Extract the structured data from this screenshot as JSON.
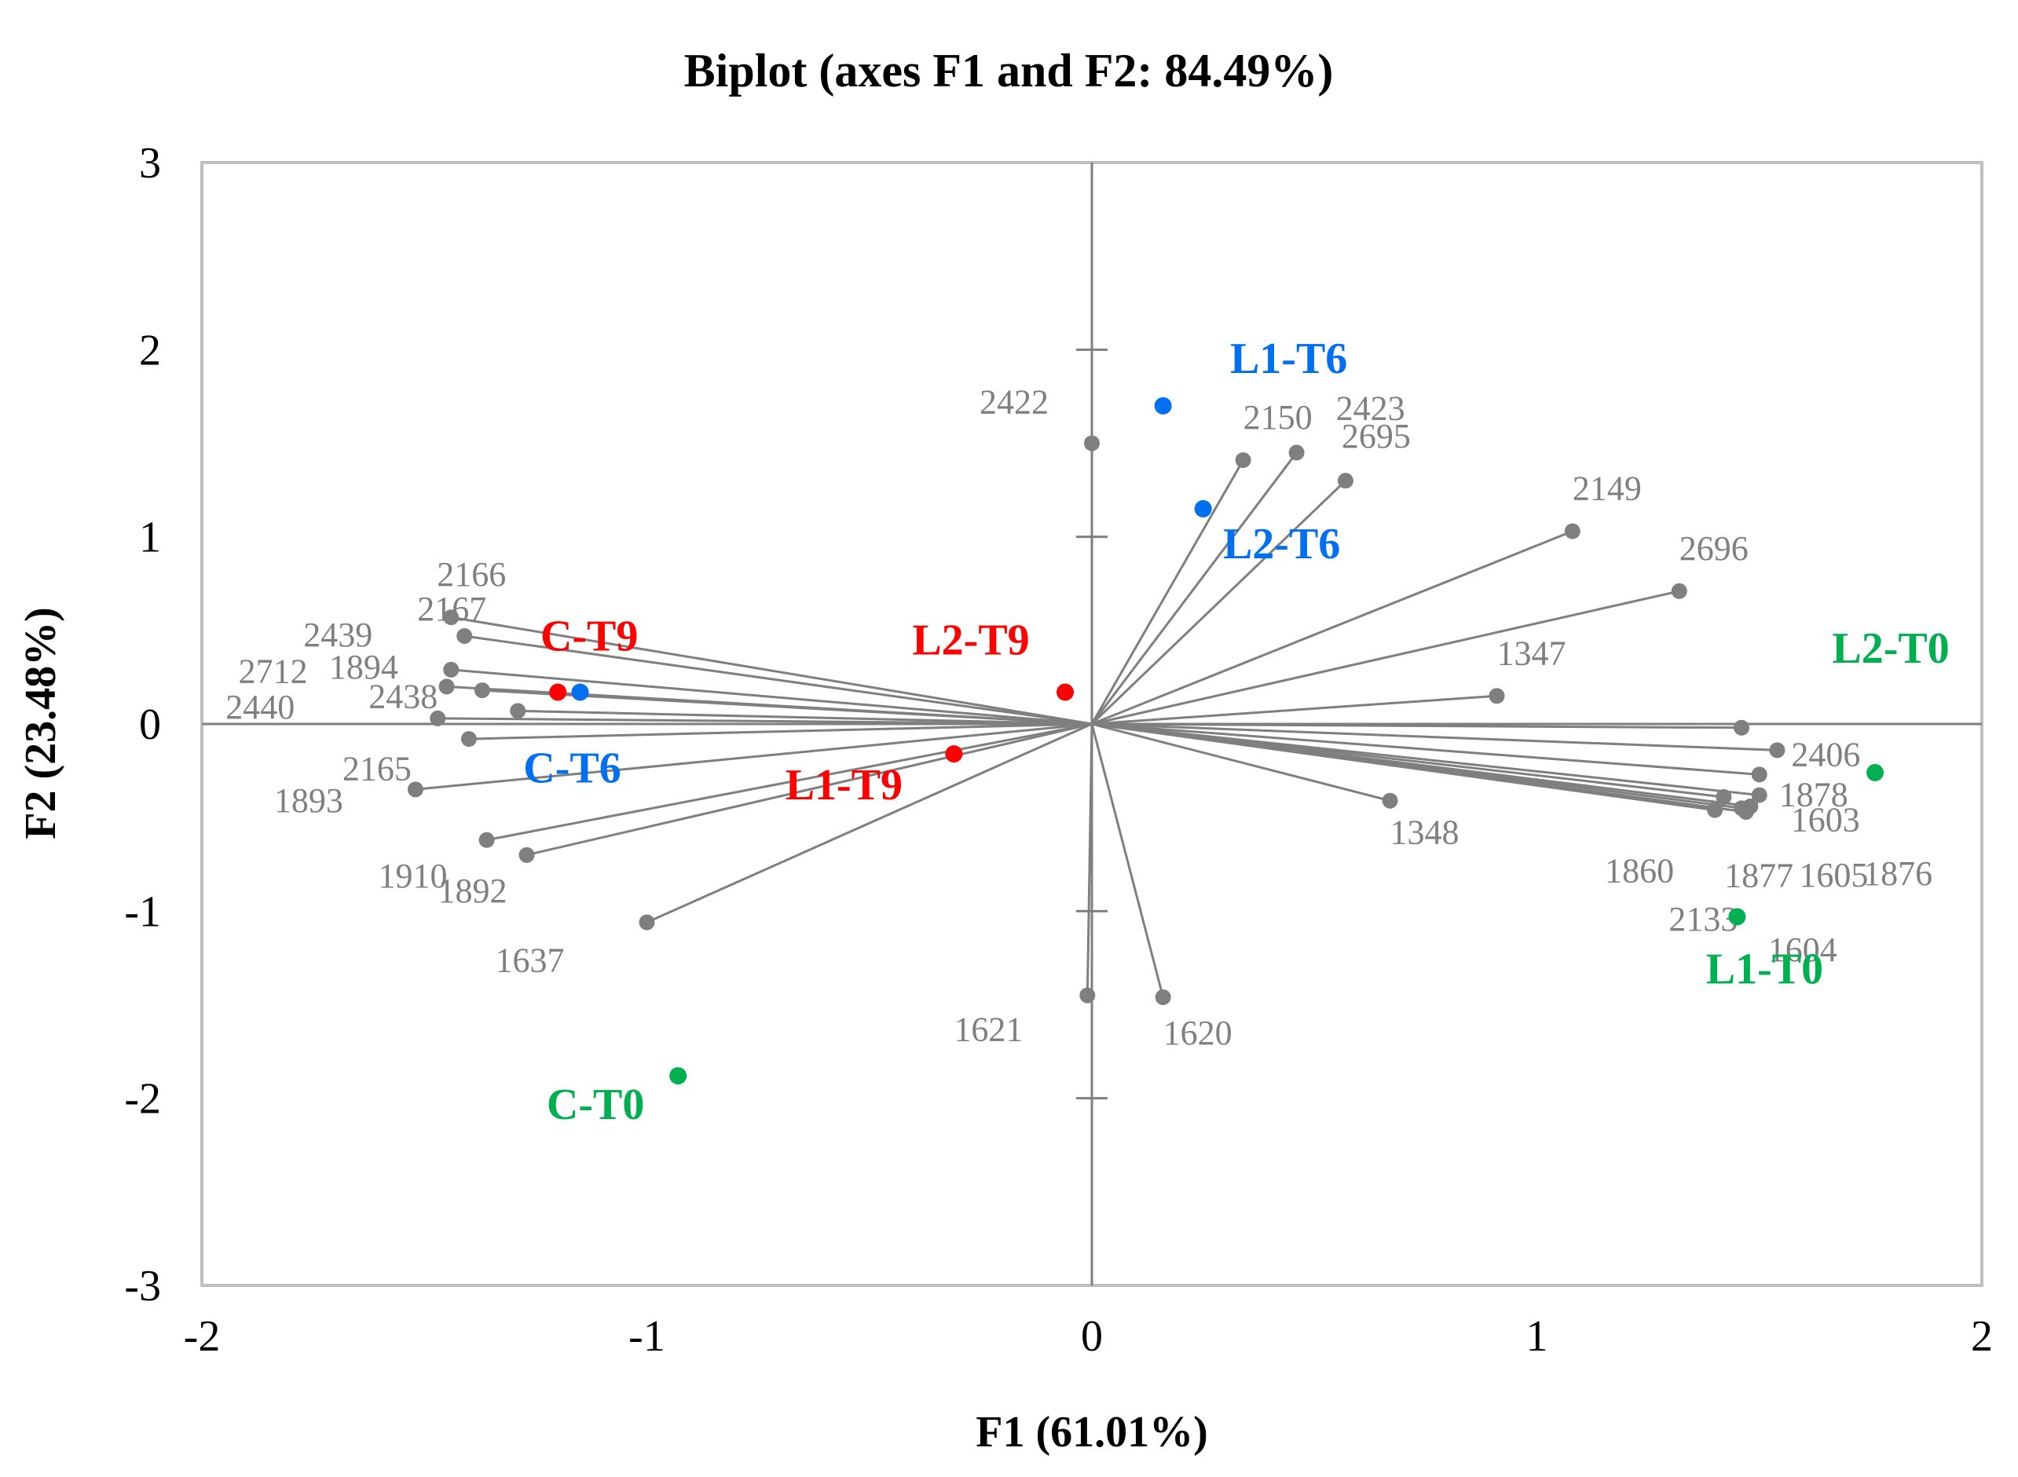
{
  "chart_data": {
    "type": "scatter",
    "subtype": "biplot",
    "title": "Biplot (axes F1 and F2: 84.49%)",
    "xlabel": "F1 (61.01%)",
    "ylabel": "F2 (23.48%)",
    "xlim": [
      -2,
      2
    ],
    "ylim": [
      -3,
      3
    ],
    "xticks": [
      "-2",
      "-1",
      "0",
      "1",
      "2"
    ],
    "yticks": [
      "-3",
      "-2",
      "-1",
      "0",
      "1",
      "2",
      "3"
    ],
    "colors": {
      "variables": "#7f7f7f",
      "frame": "#bfbfbf",
      "T0": "#00b050",
      "T6": "#0070f0",
      "T9": "#ff0000"
    },
    "variables": [
      {
        "label": "2422",
        "x": 0.0,
        "y": 1.5
      },
      {
        "label": "2150",
        "x": 0.34,
        "y": 1.41
      },
      {
        "label": "2423",
        "x": 0.46,
        "y": 1.45
      },
      {
        "label": "2695",
        "x": 0.57,
        "y": 1.3
      },
      {
        "label": "2149",
        "x": 1.08,
        "y": 1.03
      },
      {
        "label": "2696",
        "x": 1.32,
        "y": 0.71
      },
      {
        "label": "1347",
        "x": 0.91,
        "y": 0.15
      },
      {
        "label": "2406",
        "x": 1.54,
        "y": -0.14
      },
      {
        "label": "1878",
        "x": 1.5,
        "y": -0.27
      },
      {
        "label": "1603",
        "x": 1.5,
        "y": -0.38
      },
      {
        "label": "1860",
        "x": 1.4,
        "y": -0.46
      },
      {
        "label": "1877",
        "x": 1.46,
        "y": -0.45
      },
      {
        "label": "1605",
        "x": 1.48,
        "y": -0.44
      },
      {
        "label": "1876",
        "x": 1.46,
        "y": -0.02
      },
      {
        "label": "2133",
        "x": 1.42,
        "y": -0.39
      },
      {
        "label": "1604",
        "x": 1.47,
        "y": -0.47
      },
      {
        "label": "1348",
        "x": 0.67,
        "y": -0.41
      },
      {
        "label": "1620",
        "x": 0.16,
        "y": -1.46
      },
      {
        "label": "1621",
        "x": -0.01,
        "y": -1.45
      },
      {
        "label": "1637",
        "x": -1.0,
        "y": -1.06
      },
      {
        "label": "1892",
        "x": -1.27,
        "y": -0.7
      },
      {
        "label": "1910",
        "x": -1.36,
        "y": -0.62
      },
      {
        "label": "1893",
        "x": -1.4,
        "y": -0.08
      },
      {
        "label": "2165",
        "x": -1.52,
        "y": -0.35
      },
      {
        "label": "2166",
        "x": -1.44,
        "y": 0.57
      },
      {
        "label": "2167",
        "x": -1.41,
        "y": 0.47
      },
      {
        "label": "2439",
        "x": -1.44,
        "y": 0.29
      },
      {
        "label": "2712",
        "x": -1.45,
        "y": 0.2
      },
      {
        "label": "1894",
        "x": -1.37,
        "y": 0.18
      },
      {
        "label": "2440",
        "x": -1.47,
        "y": 0.03
      },
      {
        "label": "2438",
        "x": -1.29,
        "y": 0.07
      }
    ],
    "observations": [
      {
        "label": "L1-T6",
        "group": "T6",
        "x": 0.16,
        "y": 1.7
      },
      {
        "label": "L2-T6",
        "group": "T6",
        "x": 0.25,
        "y": 1.15
      },
      {
        "label": "C-T6",
        "group": "T6",
        "x": -1.15,
        "y": 0.17
      },
      {
        "label": "C-T9",
        "group": "T9",
        "x": -1.2,
        "y": 0.17
      },
      {
        "label": "L2-T9",
        "group": "T9",
        "x": -0.06,
        "y": 0.17
      },
      {
        "label": "L1-T9",
        "group": "T9",
        "x": -0.31,
        "y": -0.16
      },
      {
        "label": "L2-T0",
        "group": "T0",
        "x": 1.76,
        "y": -0.26
      },
      {
        "label": "L1-T0",
        "group": "T0",
        "x": 1.45,
        "y": -1.03
      },
      {
        "label": "C-T0",
        "group": "T0",
        "x": -0.93,
        "y": -1.88
      }
    ]
  }
}
